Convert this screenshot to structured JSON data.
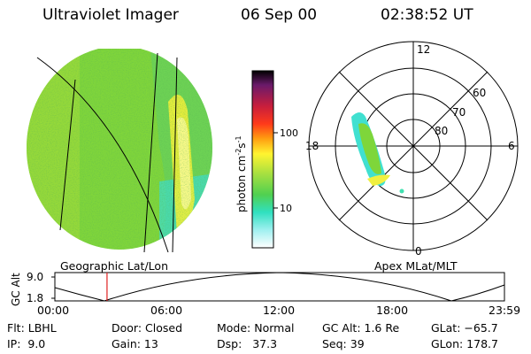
{
  "header": {
    "instrument": "Ultraviolet Imager",
    "date": "06 Sep 00",
    "time": "02:38:52 UT"
  },
  "panels": {
    "left_label": "Geographic Lat/Lon",
    "right_label": "Apex MLat/MLT"
  },
  "colorbar": {
    "label_main": "photon cm",
    "label_sup1": "-2",
    "label_mid": "s",
    "label_sup2": "-1",
    "ticks": [
      "100",
      "10"
    ],
    "scale": "log"
  },
  "polar": {
    "mlt_labels": [
      "12",
      "18",
      "6",
      "0"
    ],
    "lat_labels": [
      "60",
      "70",
      "80"
    ]
  },
  "timeline": {
    "ylabel": "GC Alt",
    "yticks": [
      "9.0",
      "1.8"
    ],
    "xticks": [
      "00:00",
      "06:00",
      "12:00",
      "18:00",
      "23:59"
    ],
    "marker_fraction": 0.116
  },
  "info": {
    "flt": "Flt: LBHL",
    "ip": "IP:  9.0",
    "door": "Door: Closed",
    "gain": "Gain: 13",
    "mode": "Mode: Normal",
    "dsp": "Dsp:   37.3",
    "gcalt": "GC Alt: 1.6 Re",
    "seq": "Seq: 39",
    "glat": "GLat: −65.7",
    "glon": "GLon: 178.7"
  },
  "colors": {
    "disk_main": "#7ed63a",
    "disk_cyan": "#40e0d0",
    "disk_yellow": "#f0f040",
    "marker": "#e02020"
  }
}
